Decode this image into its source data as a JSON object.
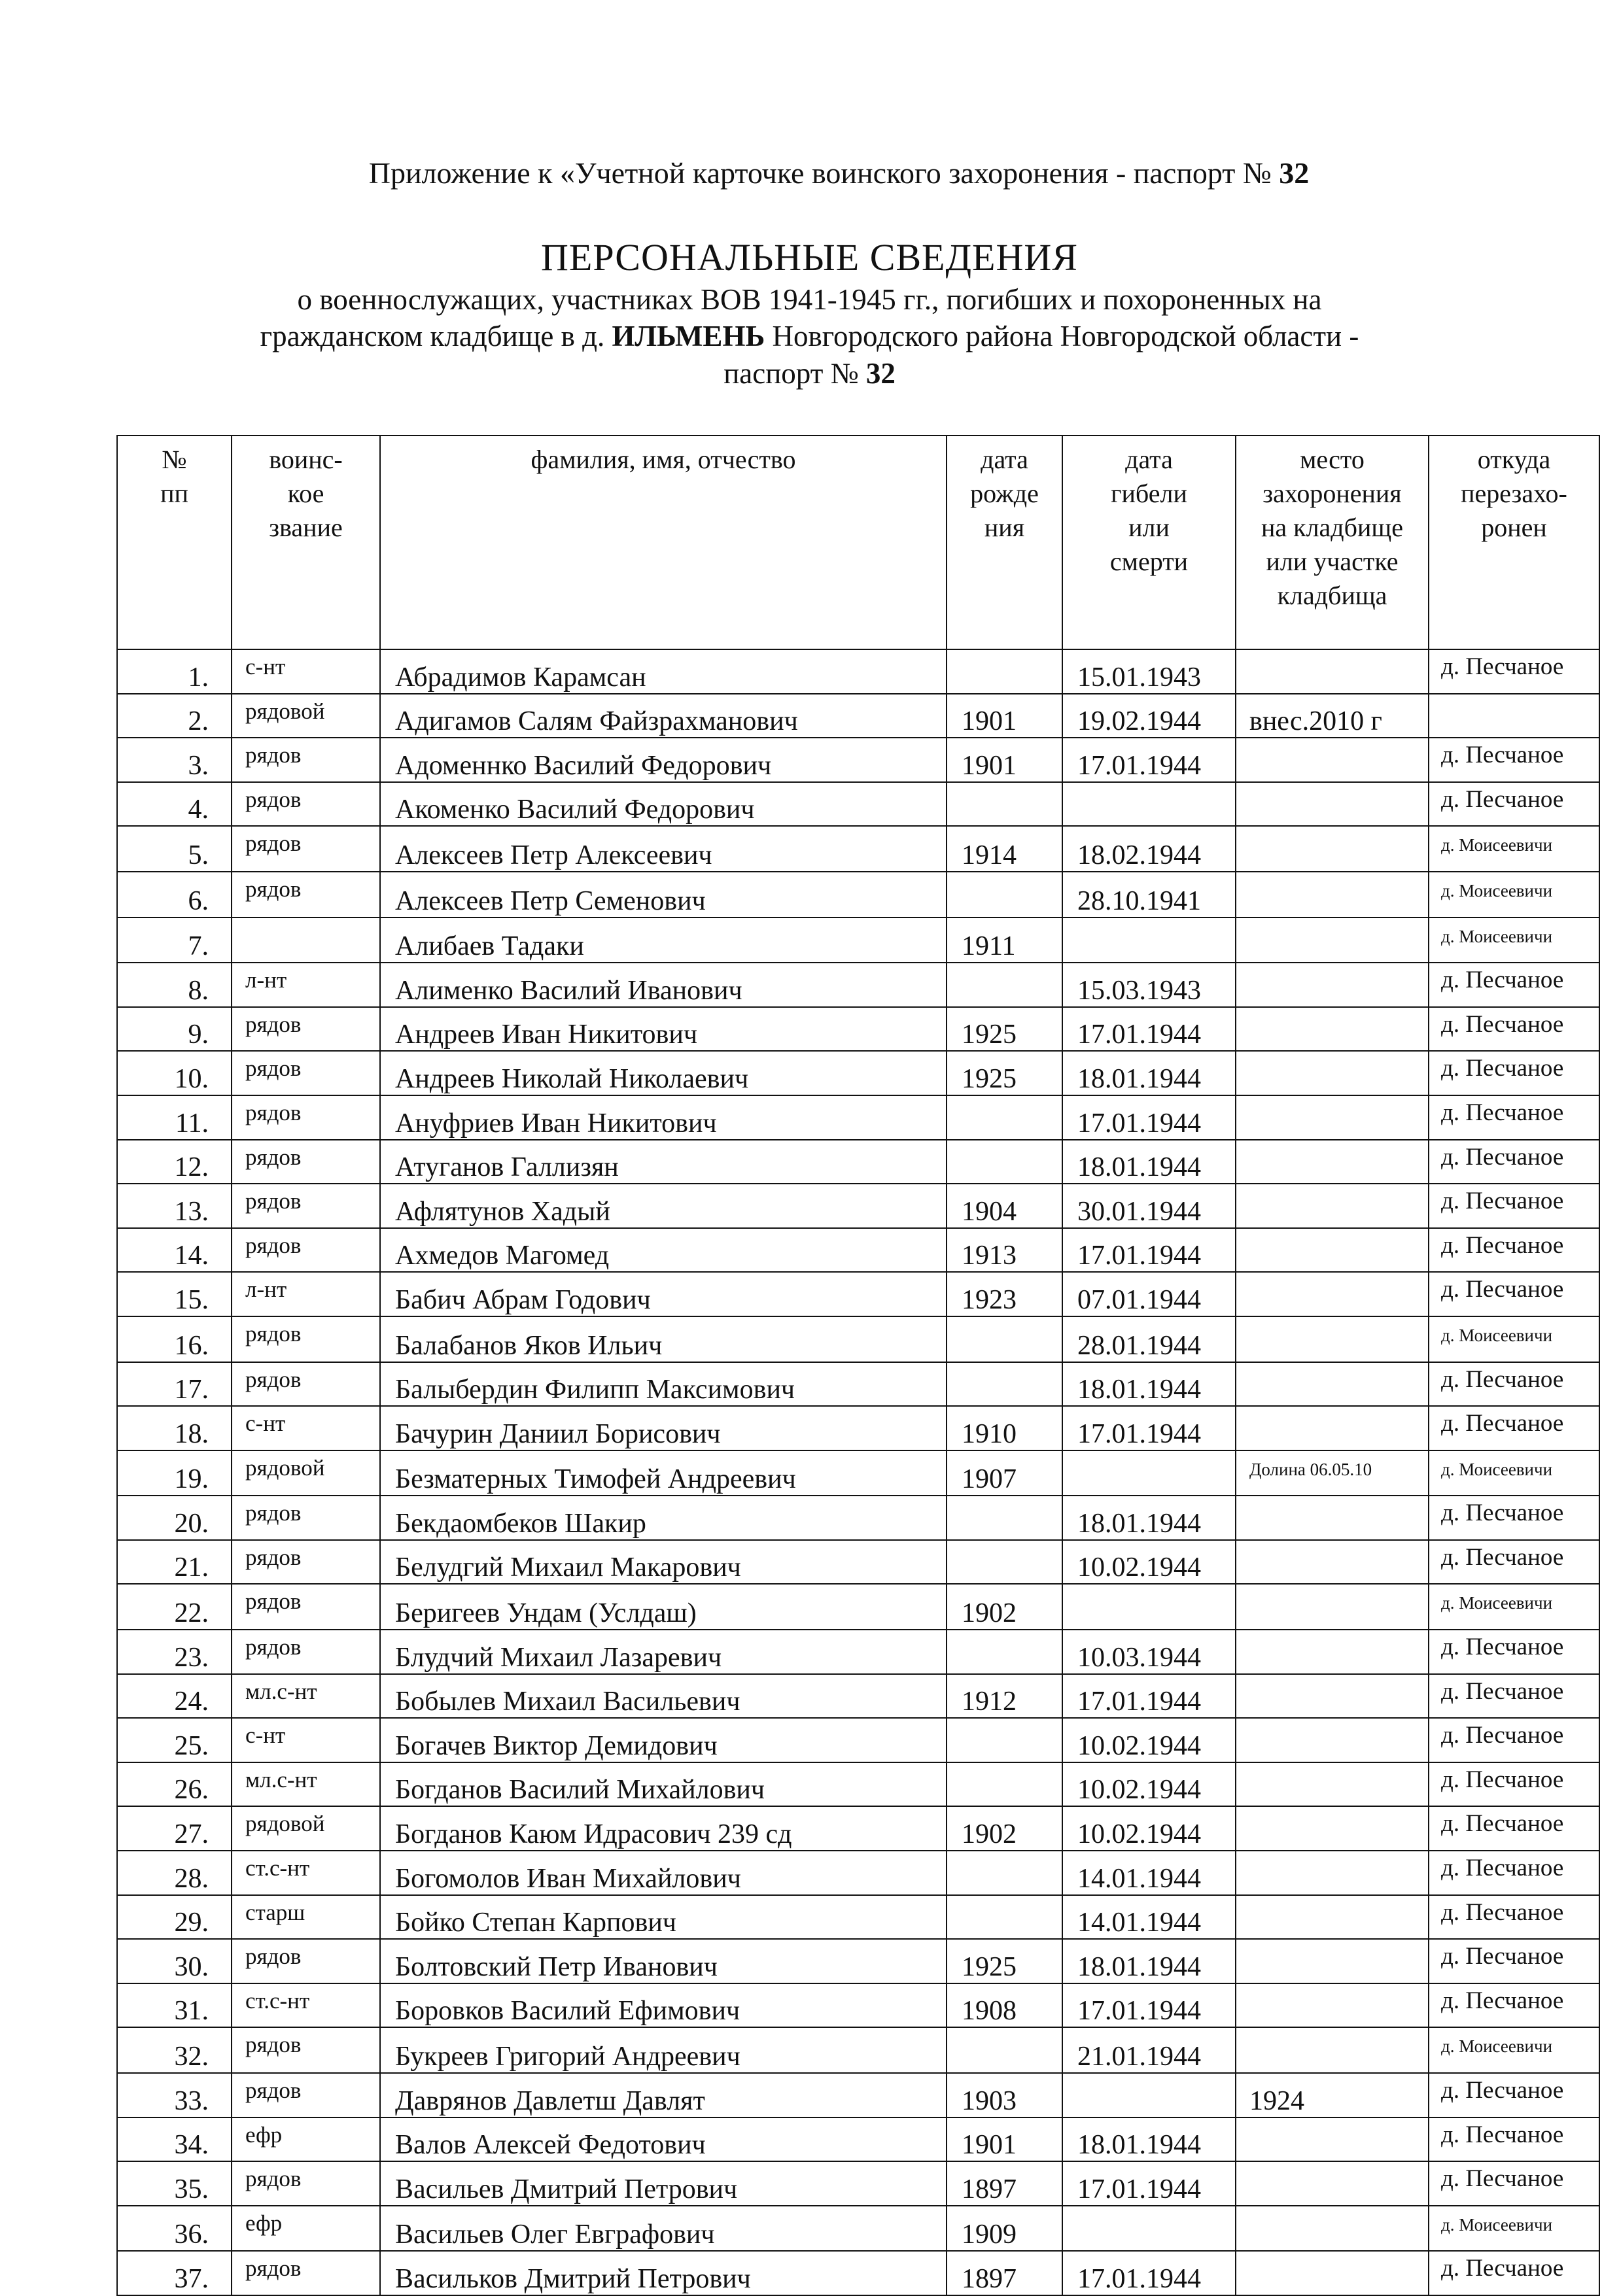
{
  "header": {
    "appendix_prefix": "Приложение к «Учетной карточке воинского захоронения - паспорт № ",
    "appendix_number": "32",
    "title": "ПЕРСОНАЛЬНЫЕ СВЕДЕНИЯ",
    "subtitle_line1": "о военнослужащих, участниках ВОВ 1941-1945 гг., погибших и похороненных на",
    "subtitle_line2_pre": "гражданском  кладбище в д. ",
    "subtitle_village": "ИЛЬМЕНЬ",
    "subtitle_line2_post": " Новгородского района Новгородской области -",
    "subtitle_line3_pre": "паспорт № ",
    "subtitle_number": "32"
  },
  "table": {
    "columns": [
      "№\nпп",
      "воинс-\nкое\nзвание",
      "фамилия, имя, отчество",
      "дата\nрожде\nния",
      "дата\nгибели\nили\nсмерти",
      "место\nзахоронения\nна кладбище\nили участке\nкладбища",
      "откуда\nперезахо-\nронен"
    ],
    "rows": [
      [
        "1.",
        "с-нт",
        "Абрадимов Карамсан",
        "",
        "15.01.1943",
        "",
        "д. Песчаное"
      ],
      [
        "2.",
        "рядовой",
        "Адигамов Салям Файзрахманович",
        "1901",
        "19.02.1944",
        "внес.2010 г",
        ""
      ],
      [
        "3.",
        "рядов",
        "Адоменнко Василий Федорович",
        "1901",
        "17.01.1944",
        "",
        "д. Песчаное"
      ],
      [
        "4.",
        "рядов",
        "Акоменко Василий Федорович",
        "",
        "",
        "",
        "д. Песчаное"
      ],
      [
        "5.",
        "рядов",
        "Алексеев Петр Алексеевич",
        "1914",
        "18.02.1944",
        "",
        "д. Моисеевичи"
      ],
      [
        "6.",
        "рядов",
        "Алексеев Петр Семенович",
        "",
        "28.10.1941",
        "",
        "д. Моисеевичи"
      ],
      [
        "7.",
        "",
        "Алибаев Тадаки",
        "1911",
        "",
        "",
        "д. Моисеевичи"
      ],
      [
        "8.",
        "л-нт",
        "Алименко Василий Иванович",
        "",
        "15.03.1943",
        "",
        "д. Песчаное"
      ],
      [
        "9.",
        "рядов",
        "Андреев Иван Никитович",
        "1925",
        "17.01.1944",
        "",
        "д. Песчаное"
      ],
      [
        "10.",
        "рядов",
        "Андреев Николай Николаевич",
        "1925",
        "18.01.1944",
        "",
        "д. Песчаное"
      ],
      [
        "11.",
        "рядов",
        "Ануфриев Иван Никитович",
        "",
        "17.01.1944",
        "",
        "д. Песчаное"
      ],
      [
        "12.",
        "рядов",
        "Атуганов Галлизян",
        "",
        "18.01.1944",
        "",
        "д. Песчаное"
      ],
      [
        "13.",
        "рядов",
        "Афлятунов Хадый",
        "1904",
        "30.01.1944",
        "",
        "д. Песчаное"
      ],
      [
        "14.",
        "рядов",
        "Ахмедов Магомед",
        "1913",
        "17.01.1944",
        "",
        "д. Песчаное"
      ],
      [
        "15.",
        "л-нт",
        "Бабич Абрам Годович",
        "1923",
        "07.01.1944",
        "",
        "д. Песчаное"
      ],
      [
        "16.",
        "рядов",
        "Балабанов Яков Ильич",
        "",
        "28.01.1944",
        "",
        "д. Моисеевичи"
      ],
      [
        "17.",
        "рядов",
        "Балыбердин Филипп Максимович",
        "",
        "18.01.1944",
        "",
        "д. Песчаное"
      ],
      [
        "18.",
        "с-нт",
        "Бачурин Даниил Борисович",
        "1910",
        "17.01.1944",
        "",
        "д. Песчаное"
      ],
      [
        "19.",
        "рядовой",
        "Безматерных Тимофей Андреевич",
        "1907",
        "",
        "Долина 06.05.10",
        "д. Моисеевичи"
      ],
      [
        "20.",
        "рядов",
        "Бекдаомбеков Шакир",
        "",
        "18.01.1944",
        "",
        "д. Песчаное"
      ],
      [
        "21.",
        "рядов",
        "Белудгий Михаил Макарович",
        "",
        "10.02.1944",
        "",
        "д. Песчаное"
      ],
      [
        "22.",
        "рядов",
        "Беригеев Ундам (Услдаш)",
        "1902",
        "",
        "",
        "д. Моисеевичи"
      ],
      [
        "23.",
        "рядов",
        "Блудчий Михаил Лазаревич",
        "",
        "10.03.1944",
        "",
        "д. Песчаное"
      ],
      [
        "24.",
        "мл.с-нт",
        "Бобылев Михаил Васильевич",
        "1912",
        "17.01.1944",
        "",
        "д. Песчаное"
      ],
      [
        "25.",
        "с-нт",
        "Богачев Виктор Демидович",
        "",
        "10.02.1944",
        "",
        "д.  Песчаное"
      ],
      [
        "26.",
        "мл.с-нт",
        "Богданов Василий Михайлович",
        "",
        "10.02.1944",
        "",
        "д. Песчаное"
      ],
      [
        "27.",
        "рядовой",
        "Богданов Каюм Идрасович  239 сд",
        "1902",
        "10.02.1944",
        "",
        "д. Песчаное"
      ],
      [
        "28.",
        "ст.с-нт",
        "Богомолов Иван Михайлович",
        "",
        "14.01.1944",
        "",
        "д. Песчаное"
      ],
      [
        "29.",
        "старш",
        "Бойко Степан Карпович",
        "",
        "14.01.1944",
        "",
        "д. Песчаное"
      ],
      [
        "30.",
        "рядов",
        "Болтовский Петр Иванович",
        "1925",
        "18.01.1944",
        "",
        "д. Песчаное"
      ],
      [
        "31.",
        "ст.с-нт",
        "Боровков Василий Ефимович",
        "1908",
        "17.01.1944",
        "",
        "д. Песчаное"
      ],
      [
        "32.",
        "рядов",
        "Букреев Григорий Андреевич",
        "",
        "21.01.1944",
        "",
        "д. Моисеевичи"
      ],
      [
        "33.",
        "рядов",
        "Даврянов Давлетш Давлят",
        "1903",
        "",
        "1924",
        "д. Песчаное"
      ],
      [
        "34.",
        "ефр",
        "Валов Алексей Федотович",
        "1901",
        "18.01.1944",
        "",
        "д. Песчаное"
      ],
      [
        "35.",
        "рядов",
        "Васильев Дмитрий Петрович",
        "1897",
        "17.01.1944",
        "",
        "д. Песчаное"
      ],
      [
        "36.",
        "ефр",
        "Васильев Олег Евграфович",
        "1909",
        "",
        "",
        "д. Моисеевичи"
      ],
      [
        "37.",
        "рядов",
        "Васильков Дмитрий Петрович",
        "1897",
        "17.01.1944",
        "",
        "д. Песчаное"
      ]
    ]
  }
}
